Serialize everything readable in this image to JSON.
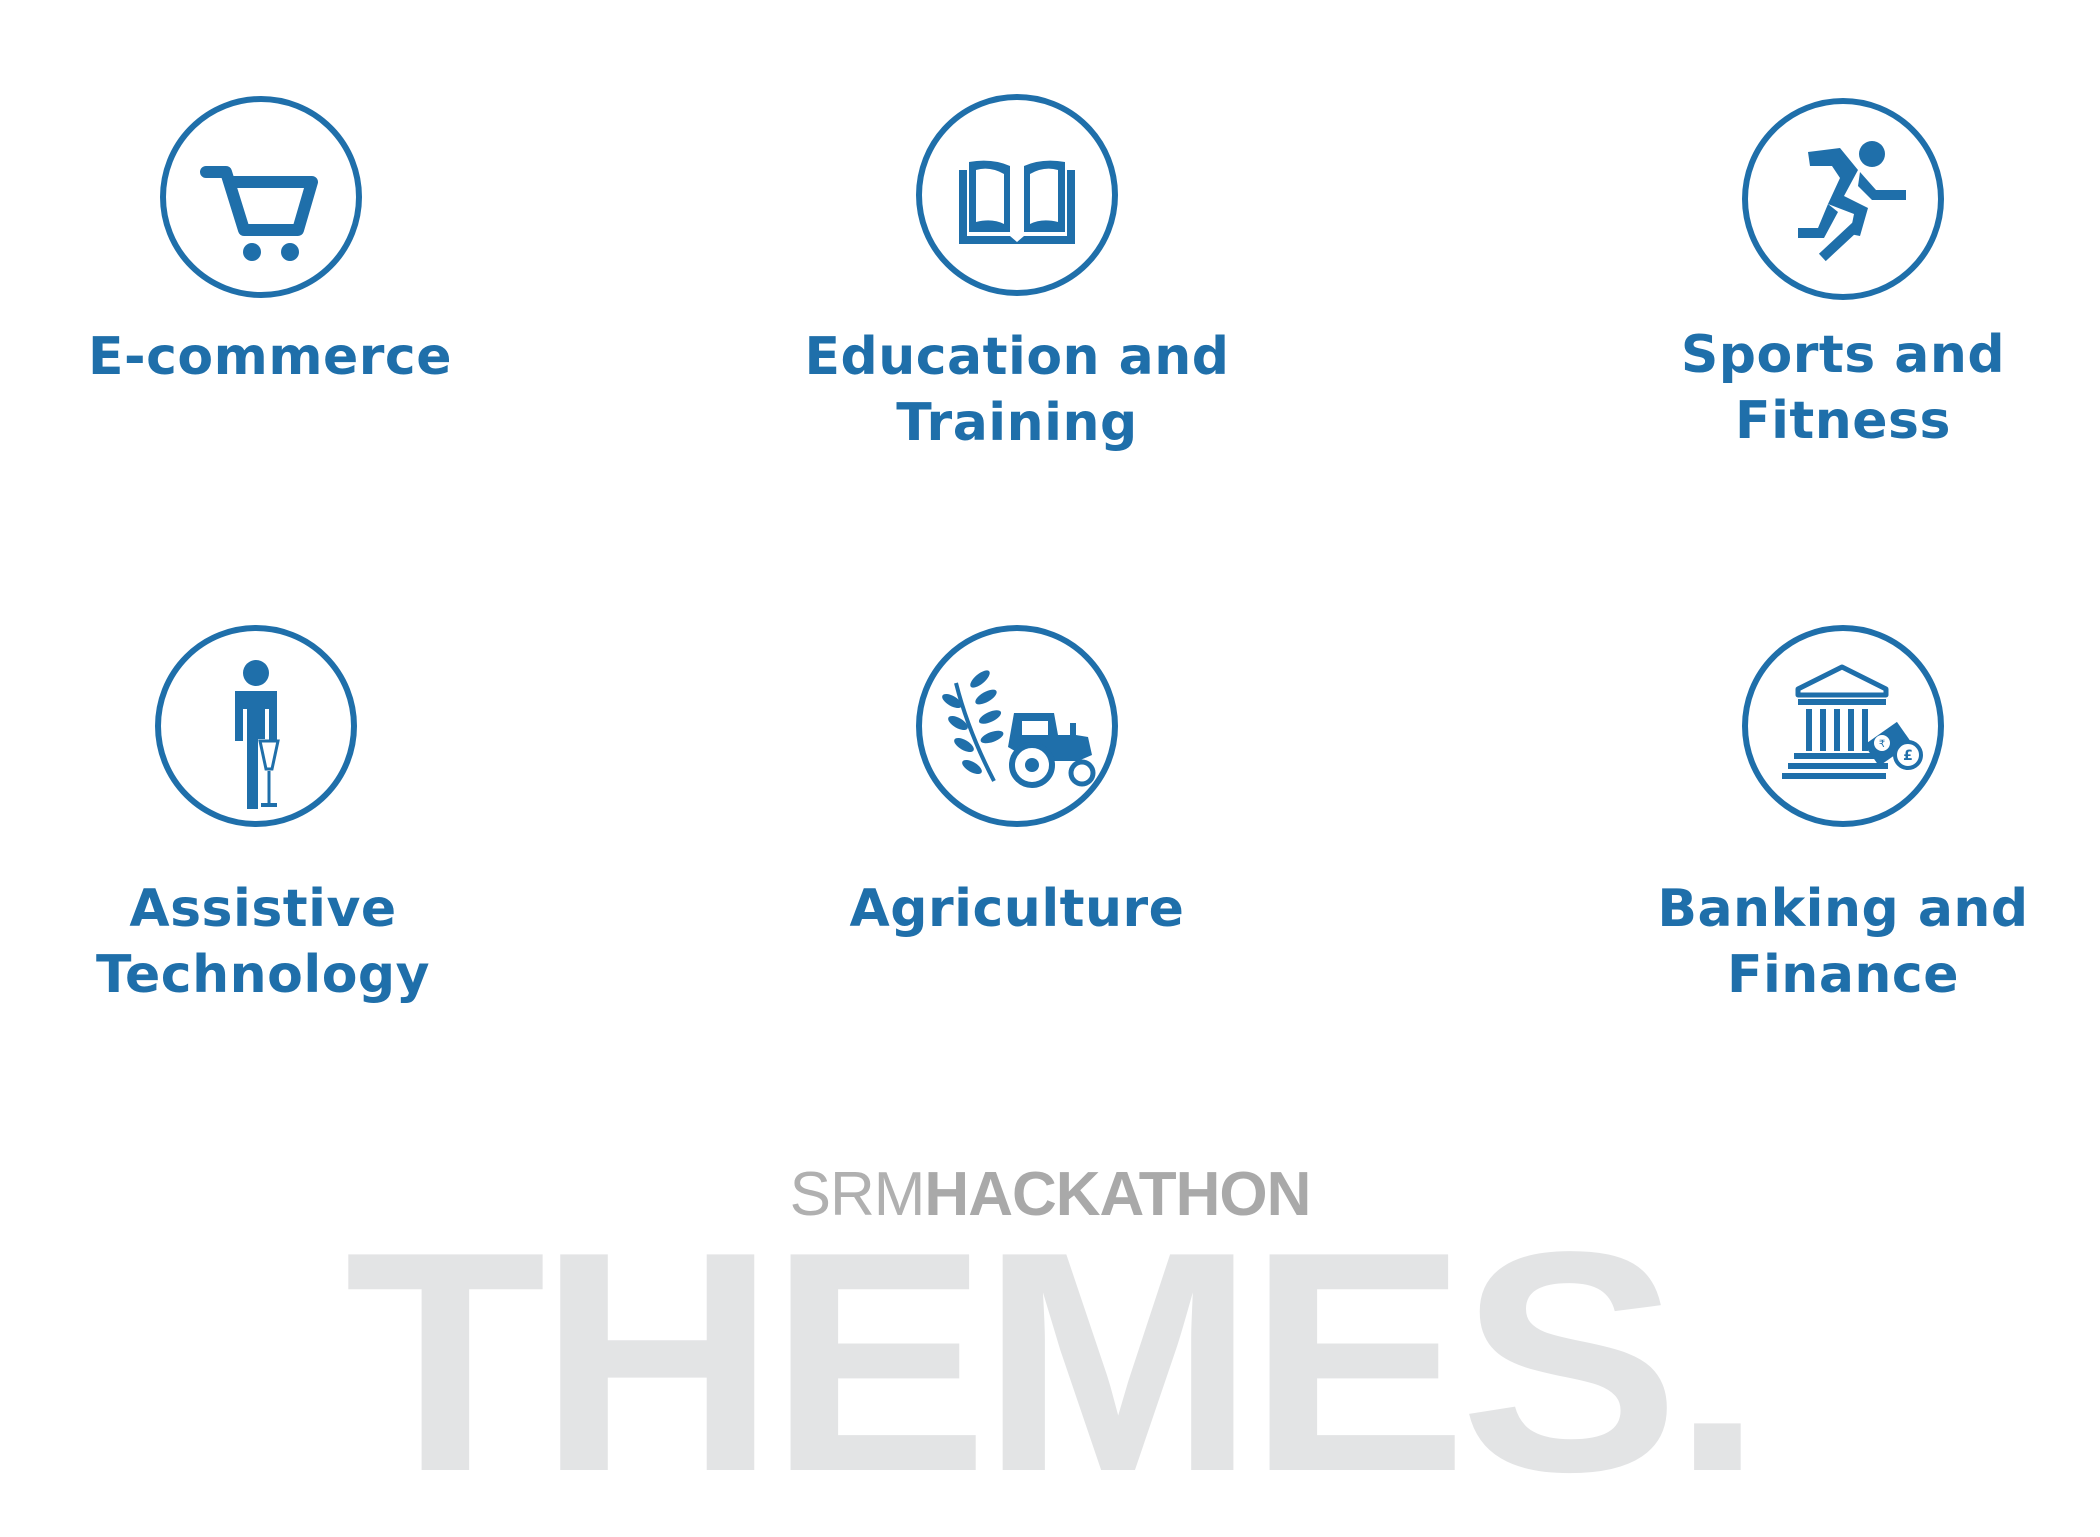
{
  "colors": {
    "accent": "#1f6faa",
    "brand_gray": "#b0b0b0",
    "watermark_gray": "#e3e4e5",
    "background": "#ffffff"
  },
  "themes": [
    {
      "icon": "shopping-cart-icon",
      "label_lines": [
        "E-commerce",
        ""
      ]
    },
    {
      "icon": "open-book-icon",
      "label_lines": [
        "Education and",
        "Training"
      ]
    },
    {
      "icon": "runner-icon",
      "label_lines": [
        "Sports and",
        "Fitness"
      ]
    },
    {
      "icon": "prosthetic-leg-person-icon",
      "label_lines": [
        "Assistive",
        "Technology"
      ]
    },
    {
      "icon": "tractor-plant-icon",
      "label_lines": [
        "Agriculture",
        ""
      ]
    },
    {
      "icon": "bank-money-icon",
      "label_lines": [
        "Banking and",
        "Finance"
      ]
    }
  ],
  "brand": {
    "light": "SRM",
    "bold": "HACKATHON"
  },
  "headline": "THEMES."
}
